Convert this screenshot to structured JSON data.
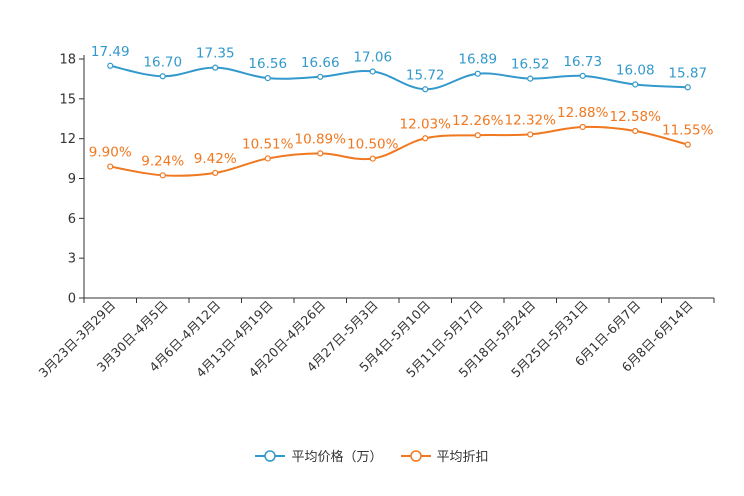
{
  "chart_data": {
    "type": "line",
    "categories": [
      "3月23日-3月29日",
      "3月30日-4月5日",
      "4月6日-4月12日",
      "4月13日-4月19日",
      "4月20日-4月26日",
      "4月27日-5月3日",
      "5月4日-5月10日",
      "5月11日-5月17日",
      "5月18日-5月24日",
      "5月25日-5月31日",
      "6月1日-6月7日",
      "6月8日-6月14日"
    ],
    "series": [
      {
        "name": "平均价格（万）",
        "color": "#3399cc",
        "values": [
          17.49,
          16.7,
          17.35,
          16.56,
          16.66,
          17.06,
          15.72,
          16.89,
          16.52,
          16.73,
          16.08,
          15.87
        ],
        "labels": [
          "17.49",
          "16.70",
          "17.35",
          "16.56",
          "16.66",
          "17.06",
          "15.72",
          "16.89",
          "16.52",
          "16.73",
          "16.08",
          "15.87"
        ]
      },
      {
        "name": "平均折扣",
        "color": "#f07820",
        "values": [
          9.9,
          9.24,
          9.42,
          10.51,
          10.89,
          10.5,
          12.03,
          12.26,
          12.32,
          12.88,
          12.58,
          11.55
        ],
        "labels": [
          "9.90%",
          "9.24%",
          "9.42%",
          "10.51%",
          "10.89%",
          "10.50%",
          "12.03%",
          "12.26%",
          "12.32%",
          "12.88%",
          "12.58%",
          "11.55%"
        ]
      }
    ],
    "yticks": [
      "0",
      "3",
      "6",
      "9",
      "12",
      "15",
      "18"
    ],
    "ylim": [
      0,
      18
    ],
    "title": "",
    "xlabel": "",
    "ylabel": "",
    "legend_position": "bottom"
  }
}
